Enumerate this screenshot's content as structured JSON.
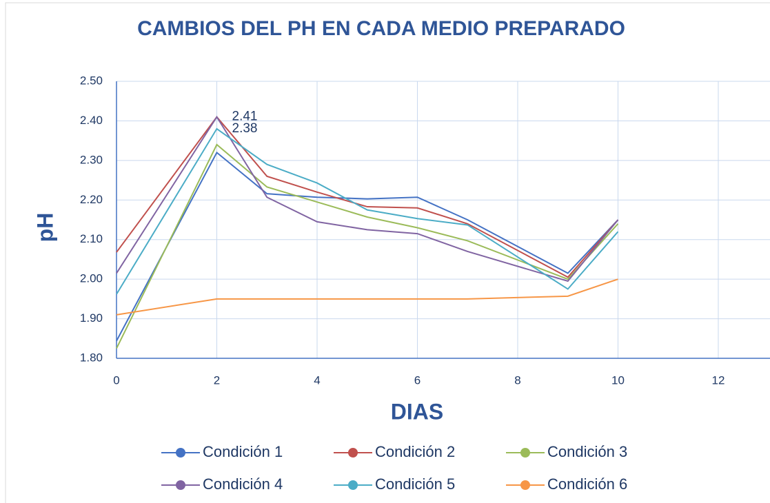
{
  "chart_data": {
    "type": "line",
    "title": "CAMBIOS DEL PH EN CADA MEDIO PREPARADO",
    "x_label": "DIAS",
    "y_label": "pH",
    "x": [
      0,
      2,
      3,
      4,
      5,
      6,
      7,
      9,
      10
    ],
    "series": [
      {
        "name": "Condición 1",
        "color": "#4472c4",
        "values": [
          1.844,
          2.32,
          2.216,
          2.207,
          2.203,
          2.207,
          2.15,
          2.015,
          2.15
        ]
      },
      {
        "name": "Condición 2",
        "color": "#c0504d",
        "values": [
          2.068,
          2.41,
          2.26,
          2.22,
          2.183,
          2.18,
          2.14,
          2.005,
          2.15
        ],
        "value_labels": [
          null,
          "2.41",
          null,
          null,
          null,
          null,
          null,
          null,
          null
        ]
      },
      {
        "name": "Condición 3",
        "color": "#9bbb59",
        "values": [
          1.825,
          2.34,
          2.233,
          2.195,
          2.157,
          2.13,
          2.097,
          2.0,
          2.14
        ]
      },
      {
        "name": "Condición 4",
        "color": "#8064a2",
        "values": [
          2.015,
          2.41,
          2.207,
          2.145,
          2.125,
          2.115,
          2.07,
          1.995,
          2.15
        ]
      },
      {
        "name": "Condición 5",
        "color": "#4bacc6",
        "values": [
          1.962,
          2.38,
          2.29,
          2.243,
          2.175,
          2.153,
          2.137,
          1.975,
          2.12
        ],
        "value_labels": [
          null,
          "2.38",
          null,
          null,
          null,
          null,
          null,
          null,
          null
        ]
      },
      {
        "name": "Condición 6",
        "color": "#f79646",
        "values": [
          1.91,
          1.95,
          1.95,
          1.95,
          1.95,
          1.95,
          1.95,
          1.957,
          2.0
        ]
      }
    ],
    "xlim": [
      0,
      12
    ],
    "xticks": [
      0,
      2,
      4,
      6,
      8,
      10,
      12
    ],
    "ylim": [
      1.8,
      2.5
    ],
    "yticks": [
      {
        "value": 1.8,
        "label": "1.80"
      },
      {
        "value": 1.9,
        "label": "1.90"
      },
      {
        "value": 2.0,
        "label": "2.00"
      },
      {
        "value": 2.1,
        "label": "2.10"
      },
      {
        "value": 2.2,
        "label": "2.20"
      },
      {
        "value": 2.3,
        "label": "2.30"
      },
      {
        "value": 2.4,
        "label": "2.40"
      },
      {
        "value": 2.5,
        "label": "2.50"
      }
    ],
    "grid": true,
    "legend": "bottom"
  }
}
